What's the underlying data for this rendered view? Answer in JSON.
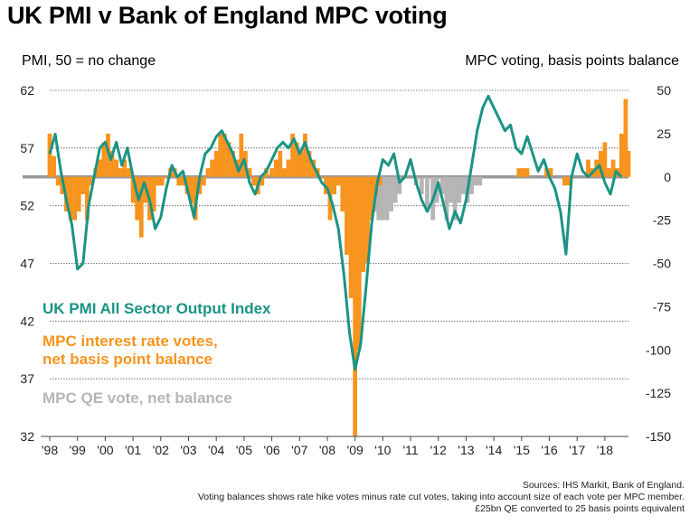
{
  "title": "UK PMI v Bank of England MPC voting",
  "left_axis_title": "PMI, 50 = no change",
  "right_axis_title": "MPC voting, basis points balance",
  "notes": [
    "Sources: IHS Markit, Bank of England.",
    "Voting balances shows rate hike votes minus rate cut votes, taking into account size of each vote per MPC member.",
    "£25bn QE converted to 25 basis points equivalent"
  ],
  "colors": {
    "pmi": "#1a9484",
    "rate": "#f7941d",
    "qe": "#b5b5b5",
    "grid": "#555555",
    "baseline": "#999999"
  },
  "chart_data": {
    "type": "line",
    "title": "UK PMI v Bank of England MPC voting",
    "xlabel": "",
    "x_categories": [
      "'98",
      "'99",
      "'00",
      "'01",
      "'02",
      "'03",
      "'04",
      "'05",
      "'06",
      "'07",
      "'08",
      "'09",
      "'10",
      "'11",
      "'12",
      "'13",
      "'14",
      "'15",
      "'16",
      "'17",
      "'18"
    ],
    "y_left": {
      "label": "PMI, 50 = no change",
      "lim": [
        32,
        62
      ],
      "ticks": [
        32,
        37,
        42,
        47,
        52,
        57,
        62
      ]
    },
    "y_right": {
      "label": "MPC voting, basis points balance",
      "lim": [
        -150,
        50
      ],
      "ticks": [
        -150,
        -125,
        -100,
        -75,
        -50,
        -25,
        0,
        25,
        50
      ]
    },
    "grid": true,
    "legend_position": "left, inside plot",
    "series": [
      {
        "name": "UK PMI All Sector Output Index",
        "kind": "line",
        "axis": "left",
        "points": [
          [
            1998.0,
            56.5
          ],
          [
            1998.2,
            58.2
          ],
          [
            1998.4,
            55.0
          ],
          [
            1998.6,
            52.5
          ],
          [
            1998.8,
            50.3
          ],
          [
            1999.0,
            46.5
          ],
          [
            1999.2,
            47.0
          ],
          [
            1999.4,
            52.0
          ],
          [
            1999.6,
            54.5
          ],
          [
            1999.8,
            57.0
          ],
          [
            2000.0,
            57.5
          ],
          [
            2000.2,
            56.0
          ],
          [
            2000.4,
            57.5
          ],
          [
            2000.6,
            55.5
          ],
          [
            2000.8,
            57.0
          ],
          [
            2001.0,
            54.5
          ],
          [
            2001.2,
            52.5
          ],
          [
            2001.4,
            54.0
          ],
          [
            2001.6,
            52.5
          ],
          [
            2001.8,
            50.0
          ],
          [
            2002.0,
            51.0
          ],
          [
            2002.2,
            53.5
          ],
          [
            2002.4,
            55.5
          ],
          [
            2002.6,
            54.5
          ],
          [
            2002.8,
            55.0
          ],
          [
            2003.0,
            53.0
          ],
          [
            2003.2,
            51.0
          ],
          [
            2003.4,
            54.5
          ],
          [
            2003.6,
            56.5
          ],
          [
            2003.8,
            57.0
          ],
          [
            2004.0,
            58.0
          ],
          [
            2004.2,
            58.5
          ],
          [
            2004.4,
            57.5
          ],
          [
            2004.6,
            56.5
          ],
          [
            2004.8,
            55.0
          ],
          [
            2005.0,
            56.0
          ],
          [
            2005.2,
            54.0
          ],
          [
            2005.4,
            53.0
          ],
          [
            2005.6,
            54.5
          ],
          [
            2005.8,
            55.0
          ],
          [
            2006.0,
            56.0
          ],
          [
            2006.2,
            57.0
          ],
          [
            2006.4,
            57.5
          ],
          [
            2006.6,
            57.0
          ],
          [
            2006.8,
            57.8
          ],
          [
            2007.0,
            56.5
          ],
          [
            2007.2,
            57.5
          ],
          [
            2007.4,
            56.0
          ],
          [
            2007.6,
            55.0
          ],
          [
            2007.8,
            54.0
          ],
          [
            2008.0,
            53.5
          ],
          [
            2008.2,
            52.0
          ],
          [
            2008.4,
            50.0
          ],
          [
            2008.6,
            46.0
          ],
          [
            2008.8,
            41.0
          ],
          [
            2009.0,
            37.8
          ],
          [
            2009.2,
            40.0
          ],
          [
            2009.4,
            45.0
          ],
          [
            2009.6,
            50.5
          ],
          [
            2009.8,
            54.0
          ],
          [
            2010.0,
            56.0
          ],
          [
            2010.2,
            55.5
          ],
          [
            2010.4,
            56.5
          ],
          [
            2010.6,
            54.0
          ],
          [
            2010.8,
            54.5
          ],
          [
            2011.0,
            56.0
          ],
          [
            2011.2,
            54.0
          ],
          [
            2011.4,
            52.5
          ],
          [
            2011.6,
            51.5
          ],
          [
            2011.8,
            52.5
          ],
          [
            2012.0,
            54.0
          ],
          [
            2012.2,
            52.0
          ],
          [
            2012.4,
            50.0
          ],
          [
            2012.6,
            51.5
          ],
          [
            2012.8,
            50.5
          ],
          [
            2013.0,
            52.5
          ],
          [
            2013.2,
            55.5
          ],
          [
            2013.4,
            58.5
          ],
          [
            2013.6,
            60.5
          ],
          [
            2013.8,
            61.5
          ],
          [
            2014.0,
            60.5
          ],
          [
            2014.2,
            59.5
          ],
          [
            2014.4,
            58.5
          ],
          [
            2014.6,
            59.0
          ],
          [
            2014.8,
            57.0
          ],
          [
            2015.0,
            56.5
          ],
          [
            2015.2,
            58.0
          ],
          [
            2015.4,
            56.5
          ],
          [
            2015.6,
            55.0
          ],
          [
            2015.8,
            56.0
          ],
          [
            2016.0,
            54.5
          ],
          [
            2016.2,
            53.5
          ],
          [
            2016.4,
            51.5
          ],
          [
            2016.6,
            47.8
          ],
          [
            2016.8,
            54.5
          ],
          [
            2017.0,
            56.5
          ],
          [
            2017.2,
            55.0
          ],
          [
            2017.4,
            54.5
          ],
          [
            2017.6,
            55.0
          ],
          [
            2017.8,
            55.5
          ],
          [
            2018.0,
            54.0
          ],
          [
            2018.2,
            53.0
          ],
          [
            2018.4,
            55.0
          ],
          [
            2018.6,
            54.5
          ]
        ]
      },
      {
        "name": "MPC interest rate votes, net basis point balance",
        "kind": "bar",
        "axis": "right",
        "points": [
          [
            1998.0,
            25
          ],
          [
            1998.15,
            12
          ],
          [
            1998.3,
            -5
          ],
          [
            1998.45,
            -10
          ],
          [
            1998.6,
            -20
          ],
          [
            1998.75,
            -25
          ],
          [
            1998.9,
            -25
          ],
          [
            1999.05,
            -20
          ],
          [
            1999.2,
            -10
          ],
          [
            1999.35,
            -25
          ],
          [
            1999.5,
            -5
          ],
          [
            1999.65,
            5
          ],
          [
            1999.8,
            10
          ],
          [
            1999.95,
            20
          ],
          [
            2000.1,
            25
          ],
          [
            2000.25,
            15
          ],
          [
            2000.4,
            10
          ],
          [
            2000.55,
            5
          ],
          [
            2000.7,
            10
          ],
          [
            2000.85,
            5
          ],
          [
            2001.0,
            -15
          ],
          [
            2001.15,
            -25
          ],
          [
            2001.3,
            -35
          ],
          [
            2001.45,
            -15
          ],
          [
            2001.6,
            -25
          ],
          [
            2001.75,
            -20
          ],
          [
            2001.9,
            -5
          ],
          [
            2002.05,
            -5
          ],
          [
            2002.2,
            0
          ],
          [
            2002.35,
            5
          ],
          [
            2002.5,
            5
          ],
          [
            2002.65,
            -5
          ],
          [
            2002.8,
            -5
          ],
          [
            2002.95,
            -10
          ],
          [
            2003.1,
            -15
          ],
          [
            2003.25,
            -25
          ],
          [
            2003.4,
            -10
          ],
          [
            2003.55,
            -5
          ],
          [
            2003.7,
            5
          ],
          [
            2003.85,
            10
          ],
          [
            2004.0,
            15
          ],
          [
            2004.15,
            25
          ],
          [
            2004.3,
            25
          ],
          [
            2004.45,
            20
          ],
          [
            2004.6,
            15
          ],
          [
            2004.75,
            10
          ],
          [
            2004.9,
            25
          ],
          [
            2005.05,
            15
          ],
          [
            2005.2,
            5
          ],
          [
            2005.35,
            -5
          ],
          [
            2005.5,
            -10
          ],
          [
            2005.65,
            -5
          ],
          [
            2005.8,
            5
          ],
          [
            2006.0,
            5
          ],
          [
            2006.15,
            10
          ],
          [
            2006.3,
            15
          ],
          [
            2006.45,
            5
          ],
          [
            2006.6,
            10
          ],
          [
            2006.75,
            25
          ],
          [
            2006.9,
            20
          ],
          [
            2007.05,
            15
          ],
          [
            2007.2,
            25
          ],
          [
            2007.35,
            15
          ],
          [
            2007.5,
            10
          ],
          [
            2007.65,
            5
          ],
          [
            2007.8,
            0
          ],
          [
            2007.95,
            -10
          ],
          [
            2008.1,
            -25
          ],
          [
            2008.25,
            -10
          ],
          [
            2008.4,
            -5
          ],
          [
            2008.55,
            -20
          ],
          [
            2008.7,
            -45
          ],
          [
            2008.85,
            -70
          ],
          [
            2009.0,
            -150
          ],
          [
            2009.15,
            -100
          ],
          [
            2009.3,
            -55
          ],
          [
            2009.45,
            -50
          ],
          [
            2009.6,
            -25
          ],
          [
            2009.75,
            -10
          ],
          [
            2009.9,
            -5
          ],
          [
            2014.9,
            5
          ],
          [
            2015.05,
            5
          ],
          [
            2015.2,
            5
          ],
          [
            2015.9,
            5
          ],
          [
            2016.05,
            5
          ],
          [
            2016.55,
            -5
          ],
          [
            2016.7,
            -5
          ],
          [
            2017.4,
            10
          ],
          [
            2017.55,
            5
          ],
          [
            2017.7,
            10
          ],
          [
            2017.85,
            15
          ],
          [
            2018.0,
            20
          ],
          [
            2018.15,
            5
          ],
          [
            2018.3,
            10
          ],
          [
            2018.45,
            5
          ],
          [
            2018.6,
            25
          ],
          [
            2018.75,
            45
          ],
          [
            2018.85,
            15
          ]
        ]
      },
      {
        "name": "MPC QE vote, net balance",
        "kind": "bar",
        "axis": "right",
        "points": [
          [
            2009.55,
            -15
          ],
          [
            2009.7,
            -20
          ],
          [
            2009.85,
            -25
          ],
          [
            2010.0,
            -25
          ],
          [
            2010.15,
            -25
          ],
          [
            2010.3,
            -20
          ],
          [
            2010.45,
            -15
          ],
          [
            2010.6,
            -10
          ],
          [
            2011.2,
            -5
          ],
          [
            2011.4,
            -10
          ],
          [
            2011.6,
            -20
          ],
          [
            2011.8,
            -25
          ],
          [
            2011.95,
            -15
          ],
          [
            2012.15,
            -10
          ],
          [
            2012.3,
            -25
          ],
          [
            2012.45,
            -15
          ],
          [
            2012.6,
            -25
          ],
          [
            2012.75,
            -15
          ],
          [
            2012.9,
            -10
          ],
          [
            2013.05,
            -15
          ],
          [
            2013.2,
            -10
          ],
          [
            2013.35,
            -5
          ],
          [
            2013.5,
            -5
          ]
        ]
      }
    ]
  }
}
